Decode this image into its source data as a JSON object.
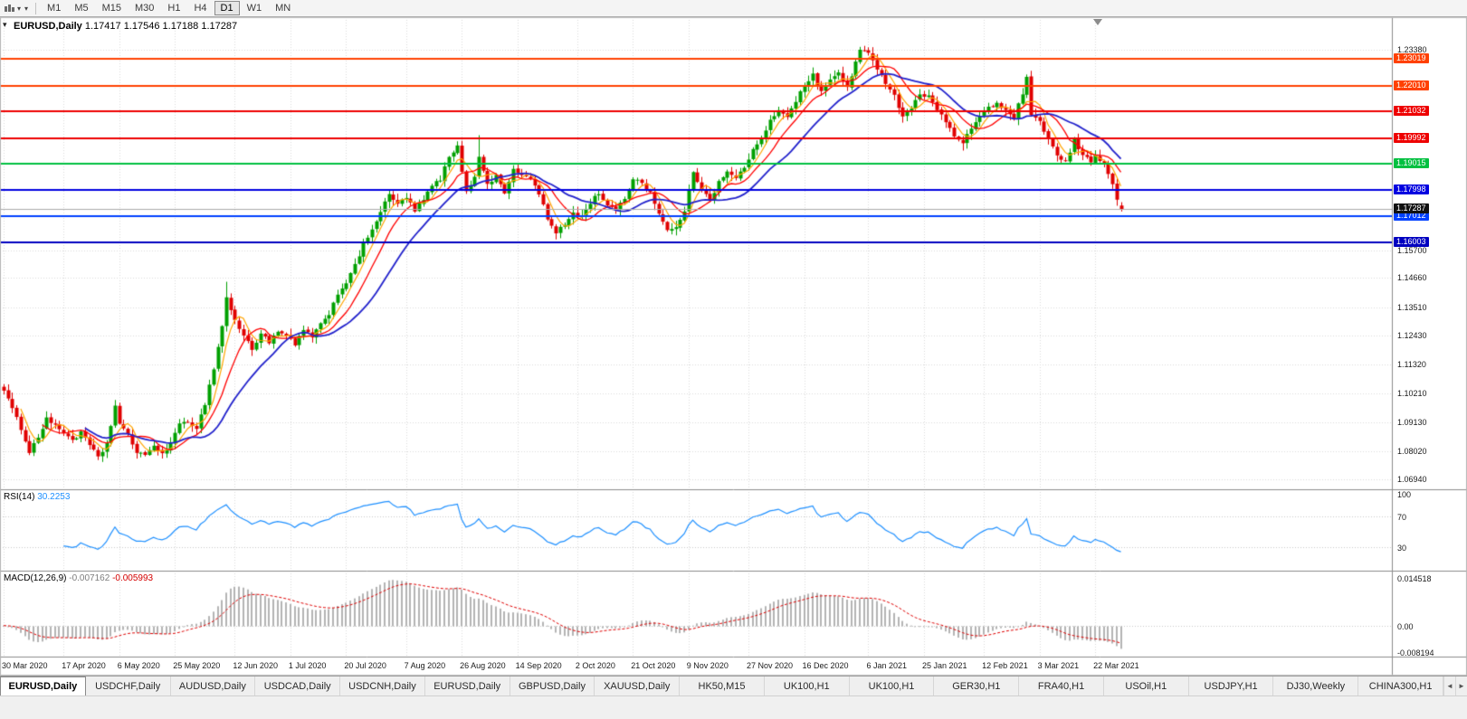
{
  "toolbar": {
    "timeframes": [
      "M1",
      "M5",
      "M15",
      "M30",
      "H1",
      "H4",
      "D1",
      "W1",
      "MN"
    ],
    "active_timeframe": "D1"
  },
  "quote": {
    "symbol": "EURUSD,Daily",
    "open": "1.17417",
    "high": "1.17546",
    "low": "1.17188",
    "close": "1.17287"
  },
  "indicators": {
    "rsi": {
      "label": "RSI(14)",
      "value": "30.2253",
      "color": "#1E90FF",
      "levels": [
        70,
        30
      ],
      "axis_labels": [
        "100",
        "70",
        "30"
      ]
    },
    "macd": {
      "label": "MACD(12,26,9)",
      "value_main": "-0.007162",
      "value_signal": "-0.005993",
      "histogram_color": "#B4B4B4",
      "signal_color": "#E00000",
      "axis_labels": [
        "0.014518",
        "0.00",
        "-0.008194"
      ]
    }
  },
  "axis": {
    "price_labels": [
      "1.23380",
      "1.15700",
      "1.14660",
      "1.13510",
      "1.12430",
      "1.11320",
      "1.10210",
      "1.09130",
      "1.08020",
      "1.06940"
    ],
    "date_labels": [
      {
        "t": "30 Mar 2020",
        "i": 0
      },
      {
        "t": "17 Apr 2020",
        "i": 14
      },
      {
        "t": "6 May 2020",
        "i": 27
      },
      {
        "t": "25 May 2020",
        "i": 40
      },
      {
        "t": "12 Jun 2020",
        "i": 54
      },
      {
        "t": "1 Jul 2020",
        "i": 67
      },
      {
        "t": "20 Jul 2020",
        "i": 80
      },
      {
        "t": "7 Aug 2020",
        "i": 94
      },
      {
        "t": "26 Aug 2020",
        "i": 107
      },
      {
        "t": "14 Sep 2020",
        "i": 120
      },
      {
        "t": "2 Oct 2020",
        "i": 134
      },
      {
        "t": "21 Oct 2020",
        "i": 147
      },
      {
        "t": "9 Nov 2020",
        "i": 160
      },
      {
        "t": "27 Nov 2020",
        "i": 174
      },
      {
        "t": "16 Dec 2020",
        "i": 187
      },
      {
        "t": "6 Jan 2021",
        "i": 202
      },
      {
        "t": "25 Jan 2021",
        "i": 215
      },
      {
        "t": "12 Feb 2021",
        "i": 229
      },
      {
        "t": "3 Mar 2021",
        "i": 242
      },
      {
        "t": "22 Mar 2021",
        "i": 255
      }
    ]
  },
  "hlines": [
    {
      "label": "1.23019",
      "price": 1.23019,
      "color": "#FF4000"
    },
    {
      "label": "1.22010",
      "price": 1.2201,
      "color": "#FF4000"
    },
    {
      "label": "1.21032",
      "price": 1.21032,
      "color": "#EE0000"
    },
    {
      "label": "1.19992",
      "price": 1.19992,
      "color": "#EE0000"
    },
    {
      "label": "1.19015",
      "price": 1.19015,
      "color": "#00C040"
    },
    {
      "label": "1.17998",
      "price": 1.17998,
      "color": "#0000E0"
    },
    {
      "label": "1.17012",
      "price": 1.17012,
      "color": "#0040FF"
    },
    {
      "label": "1.16003",
      "price": 1.16003,
      "color": "#0000C0"
    }
  ],
  "bid": {
    "label": "1.17287",
    "price": 1.17287,
    "bg": "#111111"
  },
  "chart_data": {
    "type": "candlestick",
    "title": "EURUSD,Daily",
    "symbol": "EURUSD",
    "timeframe": "Daily",
    "candle_count": 262,
    "y_range": [
      1.066,
      1.246
    ],
    "colors": {
      "up": "#00A000",
      "down": "#E00000",
      "background": "#FFFFFF"
    },
    "last_candle": {
      "o": 1.17417,
      "h": 1.17546,
      "l": 1.17188,
      "c": 1.17287
    },
    "moving_averages": [
      {
        "name": "fast-ma",
        "period": 5,
        "type": "sma",
        "color": "#FFA500",
        "width": 1.2
      },
      {
        "name": "mid-ma",
        "period": 10,
        "type": "sma",
        "color": "#FF0000",
        "width": 1.3
      },
      {
        "name": "slow-ma",
        "period": 20,
        "type": "sma",
        "color": "#2222CC",
        "width": 1.8
      }
    ],
    "price_anchors": [
      [
        0,
        1.104
      ],
      [
        2,
        1.096
      ],
      [
        4,
        1.089
      ],
      [
        6,
        1.08
      ],
      [
        8,
        1.0855
      ],
      [
        10,
        1.093
      ],
      [
        12,
        1.0895
      ],
      [
        14,
        1.0875
      ],
      [
        16,
        1.0845
      ],
      [
        18,
        1.087
      ],
      [
        20,
        1.0825
      ],
      [
        22,
        1.0775
      ],
      [
        24,
        1.083
      ],
      [
        26,
        1.0975
      ],
      [
        27,
        1.0905
      ],
      [
        29,
        1.086
      ],
      [
        31,
        1.08
      ],
      [
        33,
        1.079
      ],
      [
        35,
        1.0815
      ],
      [
        37,
        1.0795
      ],
      [
        39,
        1.083
      ],
      [
        41,
        1.09
      ],
      [
        43,
        1.092
      ],
      [
        45,
        1.089
      ],
      [
        47,
        1.0985
      ],
      [
        49,
        1.112
      ],
      [
        51,
        1.128
      ],
      [
        52,
        1.139
      ],
      [
        54,
        1.13
      ],
      [
        56,
        1.1245
      ],
      [
        58,
        1.119
      ],
      [
        60,
        1.1255
      ],
      [
        62,
        1.122
      ],
      [
        64,
        1.1255
      ],
      [
        66,
        1.1245
      ],
      [
        68,
        1.1205
      ],
      [
        70,
        1.127
      ],
      [
        72,
        1.1235
      ],
      [
        74,
        1.1285
      ],
      [
        76,
        1.133
      ],
      [
        78,
        1.1405
      ],
      [
        80,
        1.145
      ],
      [
        82,
        1.151
      ],
      [
        84,
        1.159
      ],
      [
        86,
        1.1655
      ],
      [
        88,
        1.1715
      ],
      [
        90,
        1.1785
      ],
      [
        92,
        1.1745
      ],
      [
        94,
        1.1775
      ],
      [
        96,
        1.172
      ],
      [
        98,
        1.1765
      ],
      [
        100,
        1.1815
      ],
      [
        102,
        1.1845
      ],
      [
        104,
        1.1925
      ],
      [
        106,
        1.1965
      ],
      [
        108,
        1.179
      ],
      [
        110,
        1.1855
      ],
      [
        111,
        1.1935
      ],
      [
        113,
        1.182
      ],
      [
        115,
        1.1855
      ],
      [
        117,
        1.1795
      ],
      [
        119,
        1.1875
      ],
      [
        121,
        1.186
      ],
      [
        123,
        1.1845
      ],
      [
        125,
        1.179
      ],
      [
        127,
        1.169
      ],
      [
        129,
        1.1635
      ],
      [
        131,
        1.167
      ],
      [
        133,
        1.1715
      ],
      [
        135,
        1.17
      ],
      [
        137,
        1.1755
      ],
      [
        139,
        1.179
      ],
      [
        141,
        1.1745
      ],
      [
        143,
        1.172
      ],
      [
        145,
        1.177
      ],
      [
        147,
        1.1845
      ],
      [
        149,
        1.183
      ],
      [
        151,
        1.179
      ],
      [
        153,
        1.1715
      ],
      [
        155,
        1.1645
      ],
      [
        157,
        1.1655
      ],
      [
        159,
        1.1725
      ],
      [
        161,
        1.1865
      ],
      [
        163,
        1.181
      ],
      [
        165,
        1.1765
      ],
      [
        167,
        1.183
      ],
      [
        169,
        1.187
      ],
      [
        171,
        1.1845
      ],
      [
        173,
        1.189
      ],
      [
        175,
        1.1955
      ],
      [
        177,
        1.199
      ],
      [
        179,
        1.2065
      ],
      [
        181,
        1.211
      ],
      [
        183,
        1.2085
      ],
      [
        185,
        1.2145
      ],
      [
        187,
        1.22
      ],
      [
        189,
        1.224
      ],
      [
        191,
        1.218
      ],
      [
        193,
        1.222
      ],
      [
        195,
        1.225
      ],
      [
        197,
        1.2195
      ],
      [
        199,
        1.229
      ],
      [
        200,
        1.2335
      ],
      [
        202,
        1.232
      ],
      [
        204,
        1.227
      ],
      [
        206,
        1.2215
      ],
      [
        208,
        1.216
      ],
      [
        210,
        1.2085
      ],
      [
        212,
        1.212
      ],
      [
        214,
        1.216
      ],
      [
        216,
        1.217
      ],
      [
        218,
        1.211
      ],
      [
        220,
        1.206
      ],
      [
        222,
        1.201
      ],
      [
        224,
        1.1975
      ],
      [
        226,
        1.204
      ],
      [
        228,
        1.2085
      ],
      [
        230,
        1.212
      ],
      [
        232,
        1.213
      ],
      [
        234,
        1.21
      ],
      [
        236,
        1.208
      ],
      [
        238,
        1.217
      ],
      [
        239,
        1.223
      ],
      [
        240,
        1.208
      ],
      [
        242,
        1.206
      ],
      [
        244,
        1.2
      ],
      [
        246,
        1.193
      ],
      [
        248,
        1.1905
      ],
      [
        250,
        1.199
      ],
      [
        252,
        1.1935
      ],
      [
        254,
        1.191
      ],
      [
        255,
        1.194
      ],
      [
        257,
        1.1895
      ],
      [
        258,
        1.1865
      ],
      [
        259,
        1.182
      ],
      [
        260,
        1.1765
      ],
      [
        261,
        1.1729
      ]
    ],
    "wick_overrides": [
      {
        "i": 52,
        "h": 1.145
      },
      {
        "i": 111,
        "h": 1.2011
      },
      {
        "i": 129,
        "l": 1.1612
      },
      {
        "i": 200,
        "h": 1.2349
      },
      {
        "i": 224,
        "l": 1.1952
      }
    ]
  },
  "tabs": {
    "active_index": 0,
    "items": [
      "EURUSD,Daily",
      "USDCHF,Daily",
      "AUDUSD,Daily",
      "USDCAD,Daily",
      "USDCNH,Daily",
      "EURUSD,Daily",
      "GBPUSD,Daily",
      "XAUUSD,Daily",
      "HK50,M15",
      "UK100,H1",
      "UK100,H1",
      "GER30,H1",
      "FRA40,H1",
      "USOil,H1",
      "USDJPY,H1",
      "DJ30,Weekly",
      "CHINA300,H1"
    ]
  }
}
